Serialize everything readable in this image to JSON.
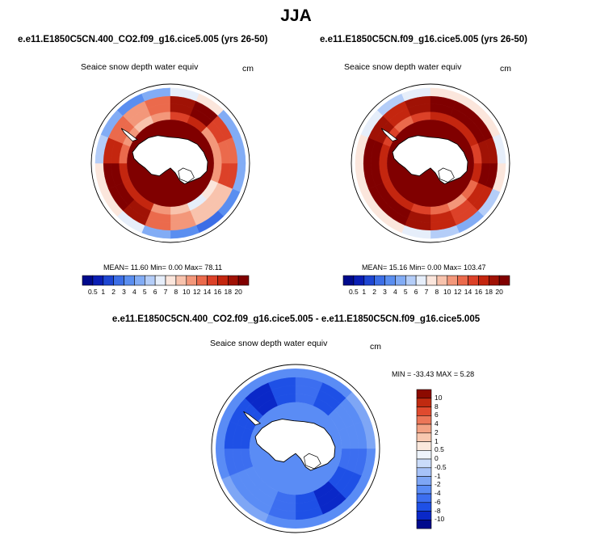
{
  "figure": {
    "title": "JJA",
    "colors": {
      "seq": [
        "#000a8c",
        "#0a1eb4",
        "#1e46d2",
        "#3c6ee6",
        "#5a8ef0",
        "#82acf5",
        "#b4cdf8",
        "#e6eefa",
        "#fbe6dc",
        "#f8c3ad",
        "#f3977a",
        "#eb6a4c",
        "#dc4128",
        "#c4260f",
        "#a01205",
        "#800000"
      ],
      "diff": [
        "#000a8c",
        "#0a28c8",
        "#1e50e6",
        "#3c6ef0",
        "#5a8cf5",
        "#7ea6f5",
        "#a6c2f8",
        "#cadcfa",
        "#eef4fc",
        "#fae8dc",
        "#f8c8b0",
        "#f3a284",
        "#ec7658",
        "#e04a2e",
        "#c02a10",
        "#8c0a00"
      ],
      "land": "#ffffff",
      "coast": "#000000"
    }
  },
  "panels": [
    {
      "case_title": "e.e11.E1850C5CN.400_CO2.f09_g16.cice5.005 (yrs 26-50)",
      "variable": "Seaice snow depth water equiv",
      "units": "cm",
      "mean_label": "MEAN=",
      "mean": "11.60",
      "min_label": "Min=",
      "min": "0.00",
      "max_label": "Max=",
      "max": "78.11"
    },
    {
      "case_title": "e.e11.E1850C5CN.f09_g16.cice5.005 (yrs 26-50)",
      "variable": "Seaice snow depth water equiv",
      "units": "cm",
      "mean_label": "MEAN=",
      "mean": "15.16",
      "min_label": "Min=",
      "min": "0.00",
      "max_label": "Max=",
      "max": "103.47"
    }
  ],
  "difference": {
    "title": "e.e11.E1850C5CN.400_CO2.f09_g16.cice5.005 - e.e11.E1850C5CN.f09_g16.cice5.005",
    "variable": "Seaice snow depth water equiv",
    "units": "cm",
    "min_label": "MIN =",
    "min": "-33.43",
    "max_label": "MAX =",
    "max": "5.28"
  },
  "chart_data": [
    {
      "type": "heatmap",
      "title": "e.e11.E1850C5CN.400_CO2.f09_g16.cice5.005 (yrs 26-50)",
      "projection": "south polar stereographic",
      "field": "Seaice snow depth water equiv",
      "units": "cm",
      "levels": [
        0.5,
        1,
        2,
        3,
        4,
        5,
        6,
        7,
        8,
        10,
        12,
        14,
        16,
        18,
        20
      ],
      "level_labels": [
        "0.5",
        "1",
        "2",
        "3",
        "4",
        "5",
        "6",
        "7",
        "8",
        "10",
        "12",
        "14",
        "16",
        "18",
        "20"
      ],
      "stats": {
        "mean": 11.6,
        "min": 0.0,
        "max": 78.11
      },
      "sector_values": [
        14,
        9,
        8,
        10,
        12,
        19,
        20,
        20,
        16,
        12,
        10,
        13,
        18,
        20,
        14,
        12
      ]
    },
    {
      "type": "heatmap",
      "title": "e.e11.E1850C5CN.f09_g16.cice5.005 (yrs 26-50)",
      "projection": "south polar stereographic",
      "field": "Seaice snow depth water equiv",
      "units": "cm",
      "levels": [
        0.5,
        1,
        2,
        3,
        4,
        5,
        6,
        7,
        8,
        10,
        12,
        14,
        16,
        18,
        20
      ],
      "level_labels": [
        "0.5",
        "1",
        "2",
        "3",
        "4",
        "5",
        "6",
        "7",
        "8",
        "10",
        "12",
        "14",
        "16",
        "18",
        "20"
      ],
      "stats": {
        "mean": 15.16,
        "min": 0.0,
        "max": 103.47
      },
      "sector_values": [
        20,
        16,
        14,
        16,
        18,
        20,
        20,
        20,
        20,
        18,
        16,
        18,
        20,
        20,
        20,
        18
      ]
    },
    {
      "type": "heatmap",
      "title": "e.e11.E1850C5CN.400_CO2.f09_g16.cice5.005 - e.e11.E1850C5CN.f09_g16.cice5.005",
      "projection": "south polar stereographic",
      "field": "Seaice snow depth water equiv",
      "units": "cm",
      "levels": [
        -10,
        -8,
        -6,
        -4,
        -2,
        -1,
        -0.5,
        0,
        0.5,
        1,
        2,
        4,
        6,
        8,
        10
      ],
      "level_labels": [
        "-10",
        "-8",
        "-6",
        "-4",
        "-2",
        "-1",
        "-0.5",
        "0",
        "0.5",
        "1",
        "2",
        "4",
        "6",
        "8",
        "10"
      ],
      "stats": {
        "min": -33.43,
        "max": 5.28
      },
      "sector_values": [
        -6,
        -8,
        -10,
        -8,
        -6,
        -4,
        -3,
        -6,
        -8,
        -8,
        -10,
        -8,
        -6,
        -8,
        -4,
        -3
      ]
    }
  ]
}
